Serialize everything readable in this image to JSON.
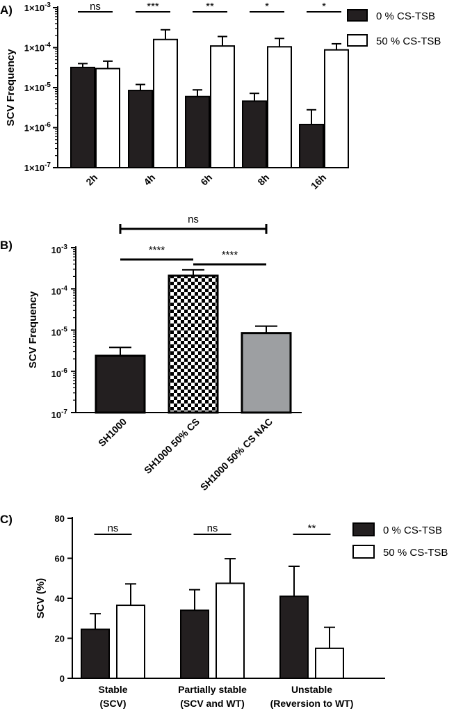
{
  "chart_data": [
    {
      "panel": "A)",
      "type": "bar",
      "ylabel": "SCV Frequency",
      "yscale": "log",
      "ylim": [
        1e-07,
        0.001
      ],
      "yticks": [
        "1×10",
        "1×10",
        "1×10",
        "1×10",
        "1×10"
      ],
      "ytick_exps": [
        "-7",
        "-6",
        "-5",
        "-4",
        "-3"
      ],
      "categories": [
        "2h",
        "4h",
        "6h",
        "8h",
        "16h"
      ],
      "series": [
        {
          "name": "0 % CS-TSB",
          "values": [
            3.2e-05,
            8.5e-06,
            6e-06,
            4.6e-06,
            1.2e-06
          ],
          "errors": [
            4e-05,
            1.2e-05,
            8.8e-06,
            7.2e-06,
            2.8e-06
          ]
        },
        {
          "name": "50 % CS-TSB",
          "values": [
            3e-05,
            0.00016,
            0.00011,
            0.000105,
            8.8e-05
          ],
          "errors": [
            4.6e-05,
            0.00028,
            0.00019,
            0.00017,
            0.000125
          ]
        }
      ],
      "significance": [
        "ns",
        "***",
        "**",
        "*",
        "*"
      ],
      "legend": [
        "0 % CS-TSB",
        "50 % CS-TSB"
      ],
      "legend_position": "top-right"
    },
    {
      "panel": "B)",
      "type": "bar",
      "ylabel": "SCV Frequency",
      "yscale": "log",
      "ylim": [
        1e-07,
        0.001
      ],
      "yticks": [
        "10",
        "10",
        "10",
        "10",
        "10"
      ],
      "ytick_exps": [
        "-7",
        "-6",
        "-5",
        "-4",
        "-3"
      ],
      "categories": [
        "SH1000",
        "SH1000 50% CS",
        "SH1000 50% CS NAC"
      ],
      "values": [
        2.4e-06,
        0.00021,
        8.5e-06
      ],
      "errors": [
        3.8e-06,
        0.00029,
        1.25e-05
      ],
      "fills": [
        "solid-black",
        "checkerboard",
        "grey"
      ],
      "comparisons": [
        {
          "from": 0,
          "to": 1,
          "label": "****"
        },
        {
          "from": 1,
          "to": 2,
          "label": "****"
        },
        {
          "from": 0,
          "to": 2,
          "label": "ns"
        }
      ]
    },
    {
      "panel": "C)",
      "type": "bar",
      "ylabel": "SCV (%)",
      "ylim": [
        0,
        80
      ],
      "yticks": [
        "0",
        "20",
        "40",
        "60",
        "80"
      ],
      "categories": [
        [
          "Stable",
          "(SCV)"
        ],
        [
          "Partially stable",
          "(SCV and WT)"
        ],
        [
          "Unstable",
          "(Reversion to WT)"
        ]
      ],
      "series": [
        {
          "name": "0 % CS-TSB",
          "values": [
            24.5,
            34,
            41
          ],
          "errors": [
            32.3,
            44.3,
            56
          ]
        },
        {
          "name": "50 % CS-TSB",
          "values": [
            36.5,
            47.5,
            15
          ],
          "errors": [
            47.2,
            59.8,
            25.5
          ]
        }
      ],
      "significance": [
        "ns",
        "ns",
        "**"
      ],
      "legend": [
        "0 % CS-TSB",
        "50 % CS-TSB"
      ],
      "legend_position": "top-right"
    }
  ]
}
